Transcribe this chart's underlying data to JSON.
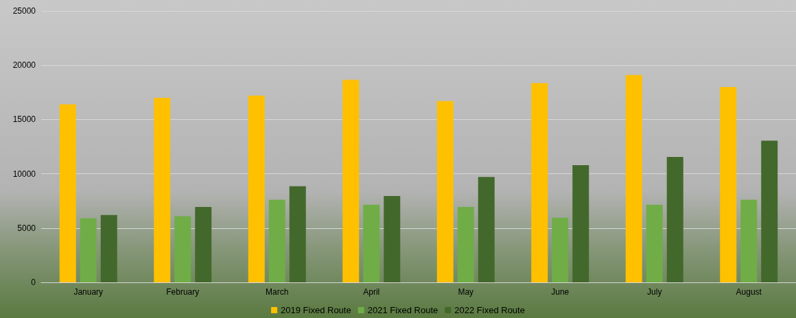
{
  "chart_data": {
    "type": "bar",
    "categories": [
      "January",
      "February",
      "March",
      "April",
      "May",
      "June",
      "July",
      "August"
    ],
    "series": [
      {
        "name": "2019 Fixed Route",
        "color": "#ffc000",
        "values": [
          16400,
          17000,
          17200,
          18650,
          16700,
          18350,
          19100,
          18000
        ]
      },
      {
        "name": "2021 Fixed Route",
        "color": "#70ad47",
        "values": [
          5900,
          6100,
          7600,
          7150,
          6950,
          5950,
          7150,
          7600
        ]
      },
      {
        "name": "2022 Fixed Route",
        "color": "#43682b",
        "values": [
          6200,
          6950,
          8850,
          7950,
          9700,
          10800,
          11550,
          13050
        ]
      }
    ],
    "ylim": [
      0,
      25000
    ],
    "yticks": [
      0,
      5000,
      10000,
      15000,
      20000,
      25000
    ],
    "grid": "y",
    "legend": "bottom"
  }
}
